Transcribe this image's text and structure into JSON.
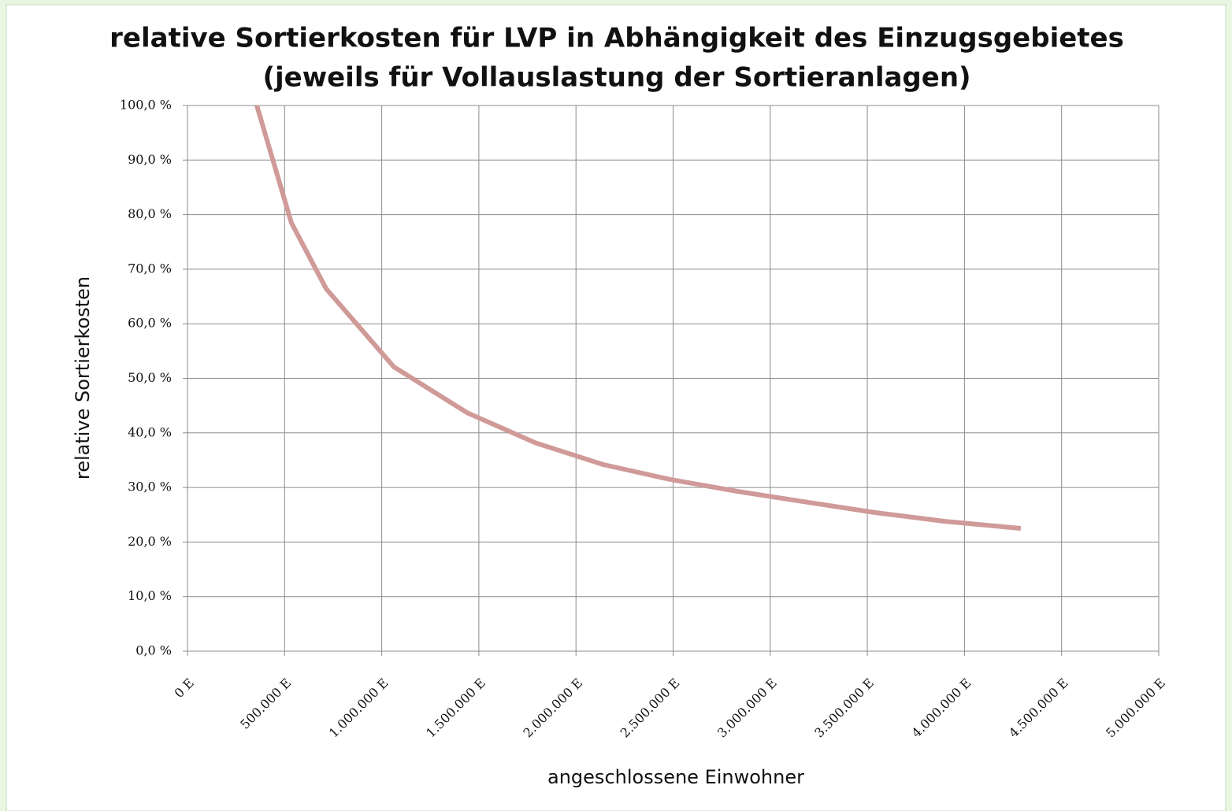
{
  "chart_data": {
    "type": "line",
    "title": [
      "relative Sortierkosten für LVP in Abhängigkeit des Einzugsgebietes",
      "(jeweils für Vollauslastung der Sortieranlagen)"
    ],
    "x_label": "angeschlossene Einwohner",
    "y_label": "relative Sortierkosten",
    "x": [
      357000,
      535000,
      714000,
      1062000,
      1440000,
      1790000,
      2140000,
      2480000,
      2830000,
      3190000,
      3540000,
      3900000,
      4290000
    ],
    "series": [
      {
        "name": "relative Sortierkosten",
        "color": "#d09a98",
        "values": [
          100,
          78.5,
          66.4,
          52.1,
          43.7,
          38.2,
          34.2,
          31.5,
          29.3,
          27.3,
          25.4,
          23.8,
          22.5
        ]
      }
    ],
    "xlim": [
      0,
      5000000
    ],
    "xticks": [
      {
        "value": 0,
        "label": "0 E"
      },
      {
        "value": 500000,
        "label": "500.000 E"
      },
      {
        "value": 1000000,
        "label": "1.000.000 E"
      },
      {
        "value": 1500000,
        "label": "1.500.000 E"
      },
      {
        "value": 2000000,
        "label": "2.000.000 E"
      },
      {
        "value": 2500000,
        "label": "2.500.000 E"
      },
      {
        "value": 3000000,
        "label": "3.000.000 E"
      },
      {
        "value": 3500000,
        "label": "3.500.000 E"
      },
      {
        "value": 4000000,
        "label": "4.000.000 E"
      },
      {
        "value": 4500000,
        "label": "4.500.000 E"
      },
      {
        "value": 5000000,
        "label": "5.000.000 E"
      }
    ],
    "ylim": [
      0,
      100
    ],
    "yticks": [
      {
        "value": 0,
        "label": "0,0 %"
      },
      {
        "value": 10,
        "label": "10,0 %"
      },
      {
        "value": 20,
        "label": "20,0 %"
      },
      {
        "value": 30,
        "label": "30,0 %"
      },
      {
        "value": 40,
        "label": "40,0 %"
      },
      {
        "value": 50,
        "label": "50,0 %"
      },
      {
        "value": 60,
        "label": "60,0 %"
      },
      {
        "value": 70,
        "label": "70,0 %"
      },
      {
        "value": 80,
        "label": "80,0 %"
      },
      {
        "value": 90,
        "label": "90,0 %"
      },
      {
        "value": 100,
        "label": "100,0 %"
      }
    ],
    "grid": true
  }
}
